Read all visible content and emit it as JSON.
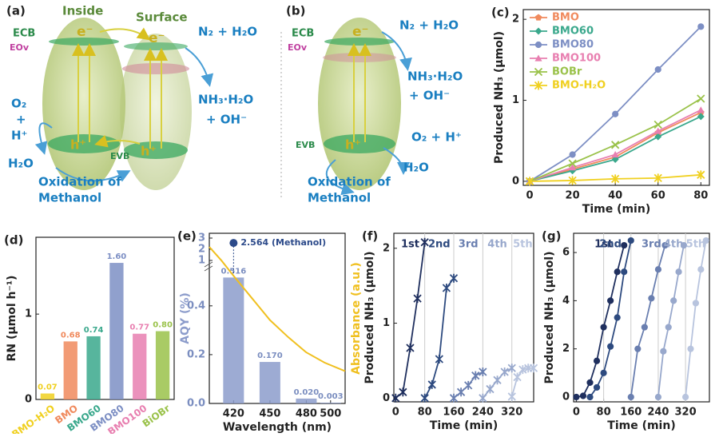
{
  "diagrams": {
    "a": {
      "label": "(a)",
      "inside": "Inside",
      "surface": "Surface",
      "ecb": "ECB",
      "eov": "EOv",
      "evb": "EVB",
      "e1": "e⁻",
      "e2": "e⁻",
      "h1": "h⁺",
      "h2": "h⁺",
      "n2": "N₂ + H₂O",
      "nh3": "NH₃·H₂O",
      "oh": "+ OH⁻",
      "o2": "O₂",
      "plus": "+",
      "hplus": "H⁺",
      "h2o": "H₂O",
      "ox1": "Oxidation of",
      "ox2": "Methanol"
    },
    "b": {
      "label": "(b)",
      "ecb": "ECB",
      "eov": "EOv",
      "evb": "EVB",
      "e1": "e⁻",
      "h1": "h⁺",
      "n2": "N₂ + H₂O",
      "nh3": "NH₃·H₂O",
      "oh": "+ OH⁻",
      "o2h": "O₂ + H⁺",
      "h2o": "H₂O",
      "ox1": "Oxidation of",
      "ox2": "Methanol"
    }
  },
  "chart_data": [
    {
      "type": "line",
      "panel_label": "(c)",
      "xlabel": "Time (min)",
      "ylabel": "Produced NH₃ (μmol)",
      "x": [
        0,
        20,
        40,
        60,
        80
      ],
      "xlim": [
        -3,
        84
      ],
      "xticks": [
        0,
        20,
        40,
        60,
        80
      ],
      "ylim": [
        -0.05,
        2.12
      ],
      "yticks": [
        0,
        1,
        2
      ],
      "legend": "top-left",
      "series": [
        {
          "name": "BMO",
          "color": "#f08a5d",
          "marker": "pentagon",
          "values": [
            0,
            0.15,
            0.3,
            0.6,
            0.85
          ]
        },
        {
          "name": "BMO60",
          "color": "#3aa88c",
          "marker": "diamond",
          "values": [
            0,
            0.13,
            0.27,
            0.55,
            0.8
          ]
        },
        {
          "name": "BMO80",
          "color": "#7d8fc4",
          "marker": "circle",
          "values": [
            0,
            0.33,
            0.83,
            1.38,
            1.91
          ]
        },
        {
          "name": "BMO100",
          "color": "#e87fb0",
          "marker": "triangle",
          "values": [
            0,
            0.17,
            0.33,
            0.62,
            0.88
          ]
        },
        {
          "name": "BOBr",
          "color": "#9ac24a",
          "marker": "x",
          "values": [
            0,
            0.22,
            0.45,
            0.7,
            1.02
          ]
        },
        {
          "name": "BMO-H₂O",
          "color": "#f0d020",
          "marker": "star",
          "values": [
            0,
            0.01,
            0.03,
            0.04,
            0.08
          ]
        }
      ]
    },
    {
      "type": "bar",
      "panel_label": "(d)",
      "ylabel": "RN (μmol h⁻¹)",
      "categories": [
        "BMO-H₂O",
        "BMO",
        "BMO60",
        "BMO80",
        "BMO100",
        "BiOBr"
      ],
      "values": [
        0.07,
        0.68,
        0.74,
        1.6,
        0.77,
        0.8
      ],
      "value_labels": [
        "0.07",
        "0.68",
        "0.74",
        "1.60",
        "0.77",
        "0.80"
      ],
      "colors": [
        "#f0d020",
        "#f08a5d",
        "#3aa88c",
        "#7d8fc4",
        "#e87fb0",
        "#9ac24a"
      ],
      "ylim": [
        0,
        1.9
      ],
      "yticks": [
        0,
        1
      ]
    },
    {
      "type": "bar",
      "panel_label": "(e)",
      "xlabel": "Wavelength (nm)",
      "ylabel": "AQY (%)",
      "y2label": "Absorbance (a.u.)",
      "x": [
        420,
        450,
        480,
        500
      ],
      "values": [
        0.516,
        0.17,
        0.02,
        0.003
      ],
      "value_labels": [
        "0.516",
        "0.170",
        "0.020",
        "0.003"
      ],
      "color": "#8c9ccb",
      "xlim": [
        400,
        512
      ],
      "xticks": [
        420,
        450,
        480,
        500
      ],
      "ylim": [
        0,
        0.55
      ],
      "yticks": [
        {
          "value": 0,
          "label": "0.0"
        },
        {
          "value": 0.2,
          "label": "0.2"
        },
        {
          "value": 0.4,
          "label": "0.4"
        }
      ],
      "ylim_upper": [
        1,
        3
      ],
      "yticks_upper": [
        1,
        2,
        3
      ],
      "highlight": {
        "x": 420,
        "value": 2.564,
        "label": "2.564 (Methanol)",
        "color": "#2c4a8a"
      },
      "y2lim": [
        0,
        1
      ],
      "series": [
        {
          "axis": "y2",
          "color": "#f0c020",
          "x": [
            400,
            410,
            420,
            435,
            450,
            465,
            480,
            495,
            512
          ],
          "values": [
            0.92,
            0.84,
            0.75,
            0.62,
            0.49,
            0.39,
            0.3,
            0.24,
            0.19
          ]
        }
      ]
    },
    {
      "type": "line",
      "panel_label": "(f)",
      "xlabel": "Time (min)",
      "ylabel": "Produced NH₃ (μmol)",
      "legend": "top",
      "grid": true,
      "xlim": [
        -5,
        380
      ],
      "xticks": [
        0,
        80,
        160,
        240,
        320
      ],
      "ylim": [
        -0.05,
        2.2
      ],
      "yticks": [
        0,
        1,
        2
      ],
      "series": [
        {
          "name": "1st",
          "color": "#1f2f5e",
          "marker": "star",
          "x": [
            0,
            20,
            40,
            60,
            80
          ],
          "values": [
            0,
            0.08,
            0.67,
            1.33,
            2.08
          ]
        },
        {
          "name": "2nd",
          "color": "#2d4a7f",
          "marker": "star",
          "x": [
            80,
            100,
            120,
            140,
            160
          ],
          "values": [
            0,
            0.18,
            0.52,
            1.47,
            1.6
          ]
        },
        {
          "name": "3rd",
          "color": "#6a7fb0",
          "marker": "star",
          "x": [
            160,
            180,
            200,
            220,
            240
          ],
          "values": [
            0,
            0.08,
            0.17,
            0.3,
            0.35
          ]
        },
        {
          "name": "4th",
          "color": "#98a8cc",
          "marker": "star",
          "x": [
            240,
            260,
            280,
            300,
            320
          ],
          "values": [
            0,
            0.12,
            0.24,
            0.35,
            0.4
          ]
        },
        {
          "name": "5th",
          "color": "#b8c4de",
          "marker": "star",
          "x": [
            320,
            335,
            350,
            365,
            380
          ],
          "values": [
            0.02,
            0.28,
            0.38,
            0.4,
            0.4
          ]
        }
      ]
    },
    {
      "type": "line",
      "panel_label": "(g)",
      "xlabel": "Time (min)",
      "ylabel": "Produced NH₃ (μmol)",
      "legend": "top",
      "grid": true,
      "xlim": [
        -8,
        390
      ],
      "xticks": [
        0,
        80,
        160,
        240,
        320
      ],
      "ylim": [
        -0.2,
        6.8
      ],
      "yticks": [
        0,
        2,
        4,
        6
      ],
      "series": [
        {
          "name": "1st",
          "color": "#1f2f5e",
          "marker": "circle",
          "x": [
            0,
            20,
            40,
            60,
            80,
            100,
            120,
            140
          ],
          "values": [
            0,
            0.05,
            0.6,
            1.5,
            2.9,
            4.0,
            5.2,
            6.3
          ]
        },
        {
          "name": "2nd",
          "color": "#2d4a7f",
          "marker": "circle",
          "x": [
            40,
            60,
            80,
            100,
            120,
            140,
            160
          ],
          "values": [
            0,
            0.4,
            1.0,
            2.1,
            3.3,
            5.2,
            6.5
          ]
        },
        {
          "name": "3rd",
          "color": "#6a7fb0",
          "marker": "circle",
          "x": [
            160,
            180,
            200,
            220,
            240,
            260
          ],
          "values": [
            0,
            2.0,
            2.9,
            4.1,
            5.3,
            6.3
          ]
        },
        {
          "name": "4th",
          "color": "#98a8cc",
          "marker": "circle",
          "x": [
            240,
            255,
            270,
            285,
            300,
            315
          ],
          "values": [
            0,
            1.9,
            2.9,
            4.0,
            5.2,
            6.3
          ]
        },
        {
          "name": "5th",
          "color": "#b8c4de",
          "marker": "circle",
          "x": [
            320,
            335,
            350,
            365,
            380
          ],
          "values": [
            0,
            2.0,
            3.9,
            5.3,
            6.5
          ]
        }
      ]
    }
  ]
}
